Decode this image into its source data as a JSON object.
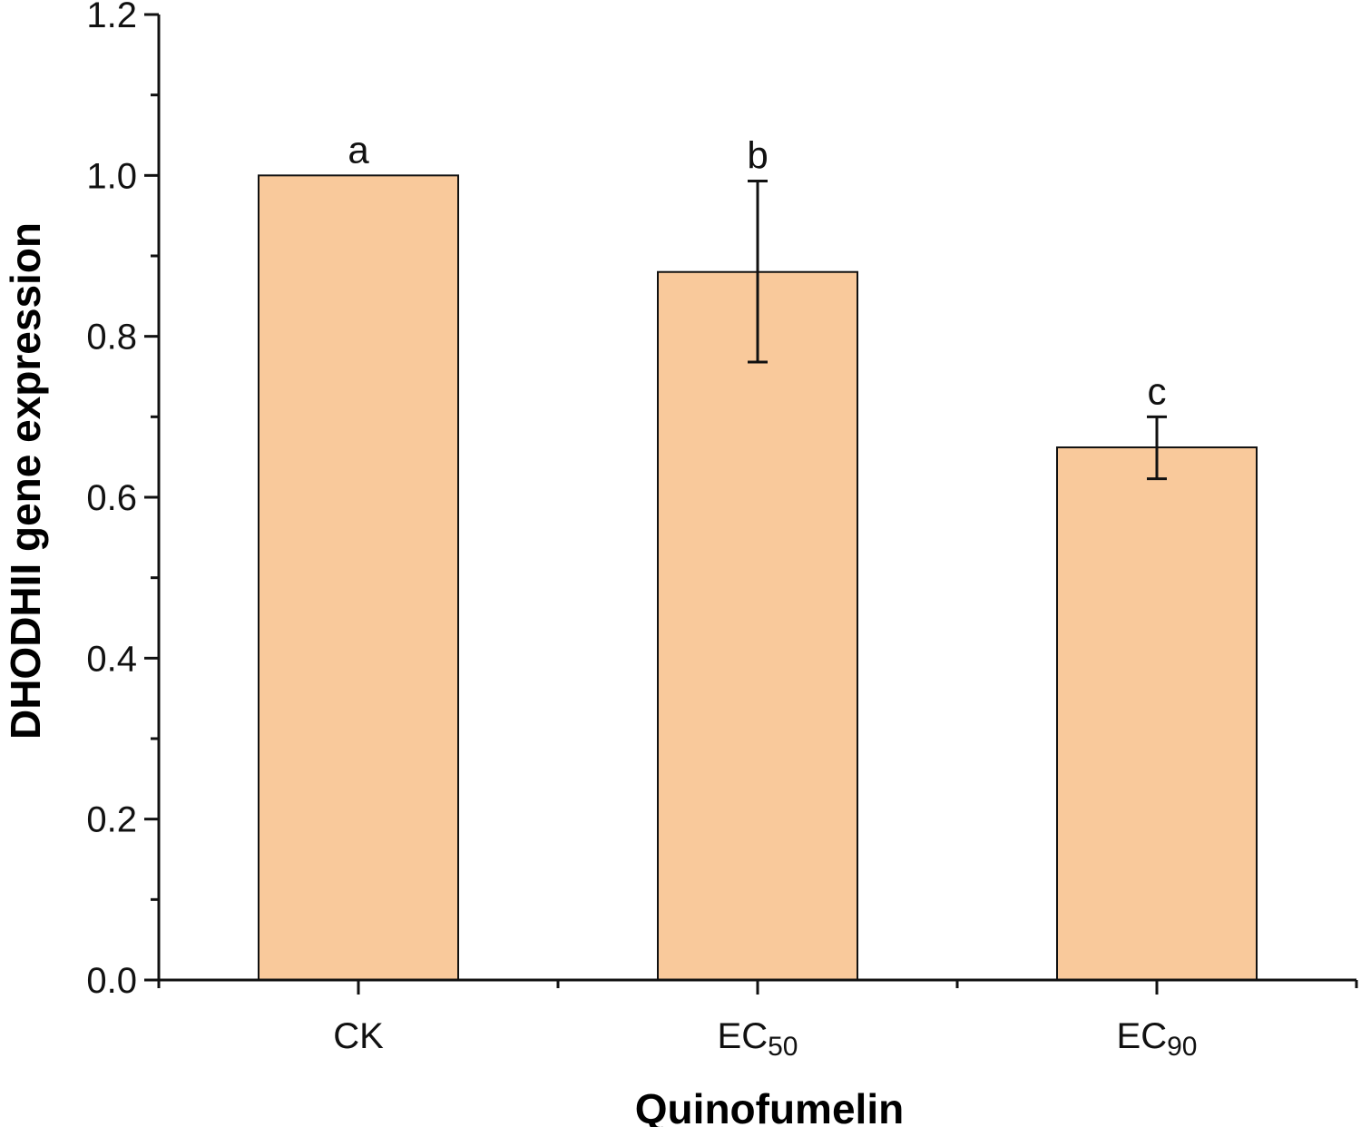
{
  "chart_data": {
    "type": "bar",
    "title": "",
    "xlabel": "Quinofumelin",
    "ylabel": "DHODHII gene expression",
    "ylim": [
      0,
      1.2
    ],
    "yticks": [
      "0.0",
      "0.2",
      "0.4",
      "0.6",
      "0.8",
      "1.0",
      "1.2"
    ],
    "categories": [
      {
        "main": "CK",
        "sub": ""
      },
      {
        "main": "EC",
        "sub": "50"
      },
      {
        "main": "EC",
        "sub": "90"
      }
    ],
    "values": [
      1.0,
      0.88,
      0.662
    ],
    "error_bars": [
      {
        "upper": null,
        "lower": null
      },
      {
        "upper": 0.993,
        "lower": 0.768
      },
      {
        "upper": 0.7,
        "lower": 0.623
      }
    ],
    "significance_labels": [
      "a",
      "b",
      "c"
    ],
    "grid": false,
    "colors": {
      "bar_fill": "#F9C99B",
      "bar_stroke": "#111111",
      "axis": "#111111"
    }
  }
}
